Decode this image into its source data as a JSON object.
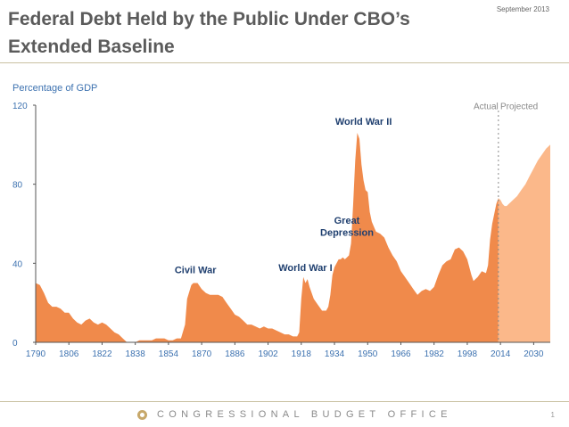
{
  "slide": {
    "title": "Federal Debt Held by the Public Under CBO’s Extended Baseline",
    "date": "September 2013",
    "footer": "CONGRESSIONAL BUDGET OFFICE",
    "page_number": "1"
  },
  "colors": {
    "actual": "#f08a4b",
    "projected": "#fbb88a",
    "axis_text": "#3d72b0",
    "annotation": "#1f3f6f",
    "divider": "#8c8c8c"
  },
  "chart_data": {
    "type": "area",
    "title": "",
    "ylabel": "Percentage of GDP",
    "xlabel": "",
    "xlim": [
      1790,
      2038
    ],
    "ylim": [
      0,
      120
    ],
    "xticks": [
      1790,
      1806,
      1822,
      1838,
      1854,
      1870,
      1886,
      1902,
      1918,
      1934,
      1950,
      1966,
      1982,
      1998,
      2014,
      2030
    ],
    "yticks": [
      0,
      40,
      80,
      120
    ],
    "grid": false,
    "split_year": 2013,
    "series": [
      {
        "name": "Actual",
        "x": [
          1790,
          1792,
          1794,
          1796,
          1798,
          1800,
          1802,
          1804,
          1806,
          1808,
          1810,
          1812,
          1814,
          1816,
          1818,
          1820,
          1822,
          1824,
          1826,
          1828,
          1830,
          1832,
          1834,
          1836,
          1838,
          1840,
          1842,
          1844,
          1846,
          1848,
          1850,
          1852,
          1854,
          1856,
          1858,
          1860,
          1862,
          1863,
          1865,
          1866,
          1868,
          1870,
          1872,
          1874,
          1876,
          1878,
          1880,
          1882,
          1884,
          1886,
          1888,
          1890,
          1892,
          1894,
          1896,
          1898,
          1900,
          1902,
          1904,
          1906,
          1908,
          1910,
          1912,
          1914,
          1916,
          1917,
          1918,
          1919,
          1920,
          1921,
          1922,
          1924,
          1926,
          1928,
          1930,
          1931,
          1932,
          1933,
          1934,
          1935,
          1936,
          1937,
          1938,
          1939,
          1940,
          1941,
          1942,
          1943,
          1944,
          1945,
          1946,
          1947,
          1948,
          1949,
          1950,
          1951,
          1952,
          1954,
          1956,
          1958,
          1960,
          1962,
          1964,
          1966,
          1968,
          1970,
          1972,
          1974,
          1976,
          1978,
          1980,
          1982,
          1984,
          1986,
          1988,
          1990,
          1992,
          1994,
          1996,
          1998,
          2000,
          2001,
          2003,
          2005,
          2007,
          2008,
          2009,
          2010,
          2011,
          2012,
          2013
        ],
        "values": [
          30,
          29,
          25,
          20,
          18,
          18,
          17,
          15,
          15,
          12,
          10,
          9,
          11,
          12,
          10,
          9,
          10,
          9,
          7,
          5,
          4,
          2,
          0,
          0,
          0,
          1,
          1,
          1,
          1,
          2,
          2,
          2,
          1,
          1,
          2,
          2,
          9,
          22,
          29,
          30,
          30,
          27,
          25,
          24,
          24,
          24,
          23,
          20,
          17,
          14,
          13,
          11,
          9,
          9,
          8,
          7,
          8,
          7,
          7,
          6,
          5,
          4,
          4,
          3,
          3,
          5,
          22,
          33,
          30,
          32,
          28,
          22,
          19,
          16,
          16,
          18,
          24,
          34,
          38,
          40,
          42,
          42,
          43,
          42,
          43,
          44,
          50,
          70,
          92,
          106,
          103,
          90,
          82,
          77,
          76,
          66,
          61,
          56,
          55,
          53,
          48,
          44,
          41,
          36,
          33,
          30,
          27,
          24,
          26,
          27,
          26,
          28,
          34,
          39,
          41,
          42,
          47,
          48,
          46,
          42,
          34,
          31,
          33,
          36,
          35,
          39,
          52,
          60,
          65,
          70,
          73
        ]
      },
      {
        "name": "Projected",
        "x": [
          2013,
          2014,
          2015,
          2016,
          2017,
          2018,
          2019,
          2020,
          2022,
          2024,
          2026,
          2028,
          2030,
          2032,
          2034,
          2036,
          2038
        ],
        "values": [
          73,
          72,
          70,
          69,
          69,
          70,
          71,
          72,
          74,
          77,
          80,
          84,
          88,
          92,
          95,
          98,
          100
        ]
      }
    ],
    "annotations": [
      {
        "text": "World War II",
        "x": 1948,
        "y": 110
      },
      {
        "text": "Great",
        "x": 1940,
        "y": 60
      },
      {
        "text": "Depression",
        "x": 1940,
        "y": 54
      },
      {
        "text": "World War I",
        "x": 1920,
        "y": 36
      },
      {
        "text": "Civil War",
        "x": 1867,
        "y": 35
      },
      {
        "text": "Actual",
        "x": 2007,
        "y": 118
      },
      {
        "text": "Projected",
        "x": 2023,
        "y": 118
      }
    ]
  }
}
